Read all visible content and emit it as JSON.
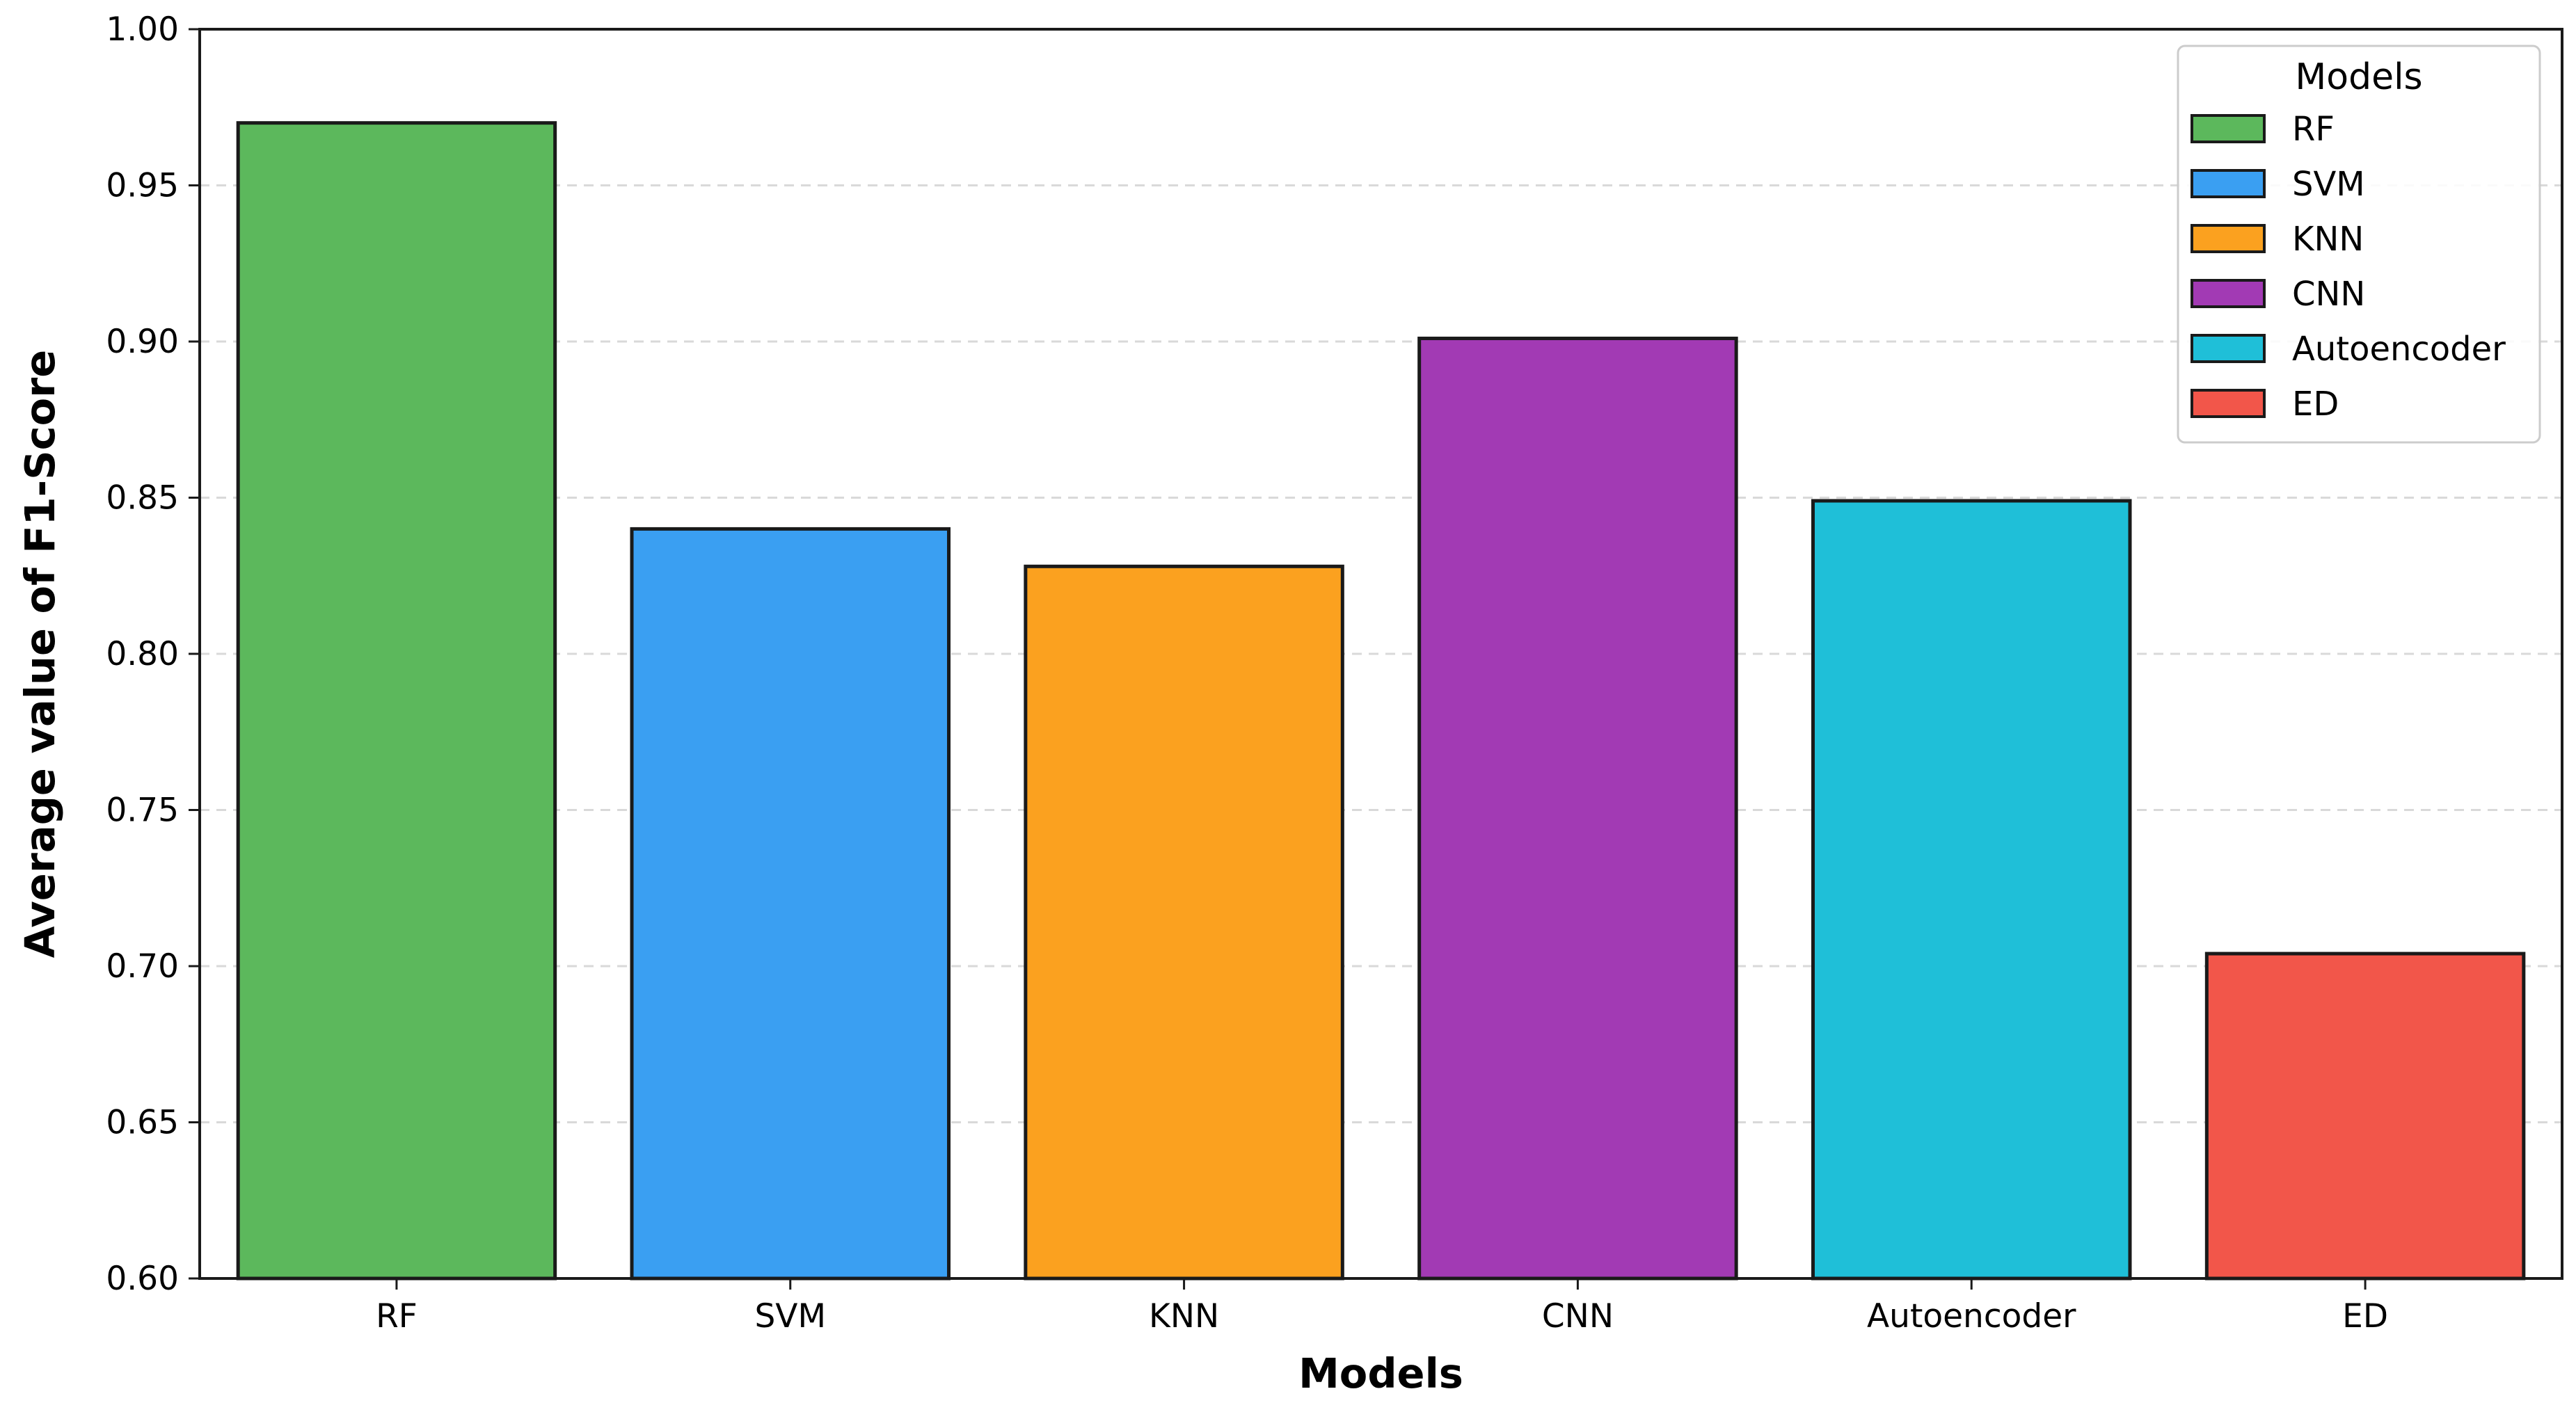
{
  "chart_data": {
    "type": "bar",
    "title": "",
    "xlabel": "Models",
    "ylabel": "Average value of F1-Score",
    "categories": [
      "RF",
      "SVM",
      "KNN",
      "CNN",
      "Autoencoder",
      "ED"
    ],
    "values": [
      0.97,
      0.84,
      0.828,
      0.901,
      0.849,
      0.704
    ],
    "colors": [
      "#5cb85c",
      "#3a9ff2",
      "#fba11f",
      "#a23ab4",
      "#1fbfd8",
      "#f2564a"
    ],
    "ylim": [
      0.6,
      1.0
    ],
    "yticks": [
      "0.60",
      "0.65",
      "0.70",
      "0.75",
      "0.80",
      "0.85",
      "0.90",
      "0.95",
      "1.00"
    ],
    "grid": "y-dashed",
    "legend": {
      "title": "Models",
      "position": "top-right",
      "entries": [
        "RF",
        "SVM",
        "KNN",
        "CNN",
        "Autoencoder",
        "ED"
      ]
    }
  }
}
